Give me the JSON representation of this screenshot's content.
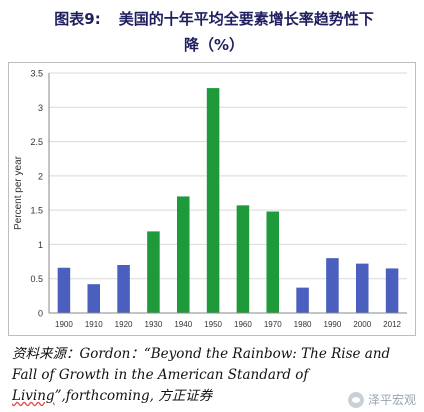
{
  "header": {
    "figure_number": "图表9:",
    "title_line1": "美国的十年平均全要素增长率趋势性下",
    "title_line2": "降（%）"
  },
  "chart_data": {
    "type": "bar",
    "categories": [
      "1900",
      "1910",
      "1920",
      "1930",
      "1940",
      "1950",
      "1960",
      "1970",
      "1980",
      "1990",
      "2000",
      "2012"
    ],
    "values": [
      0.66,
      0.42,
      0.7,
      1.19,
      1.7,
      3.28,
      1.57,
      1.48,
      0.37,
      0.8,
      0.72,
      0.65
    ],
    "bar_colors": [
      "#4a5fbe",
      "#4a5fbe",
      "#4a5fbe",
      "#1f9a3a",
      "#1f9a3a",
      "#1f9a3a",
      "#1f9a3a",
      "#1f9a3a",
      "#4a5fbe",
      "#4a5fbe",
      "#4a5fbe",
      "#4a5fbe"
    ],
    "ylabel": "Percent per year",
    "xlabel": "",
    "title": "",
    "ylim": [
      0,
      3.5
    ],
    "yticks": [
      "0",
      "0.5",
      "1",
      "1.5",
      "2",
      "2.5",
      "3",
      "3.5"
    ],
    "grid": true,
    "legend": "none"
  },
  "source": {
    "prefix": "资料来源：Gordon：“Beyond the Rainbow: The Rise and Fall of Growth in the American Standard of ",
    "wavy_text": "Living",
    "suffix": "”,forthcoming, 方正证券"
  },
  "watermark": {
    "text": "泽平宏观"
  }
}
